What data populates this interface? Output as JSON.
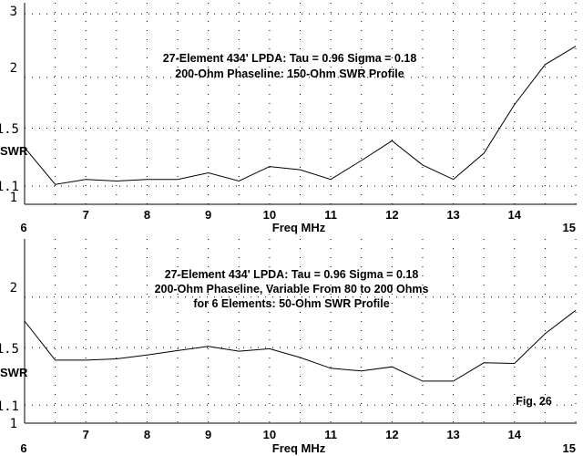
{
  "chart_data": [
    {
      "type": "line",
      "title": [
        "27-Element 434' LPDA:  Tau = 0.96 Sigma = 0.18",
        "200-Ohm Phaseline:  150-Ohm SWR Profile"
      ],
      "xlabel": "Freq MHz",
      "ylabel": "SWR",
      "xlim": [
        6,
        15
      ],
      "ylim": [
        1,
        3.25
      ],
      "yscale": "reflection-coefficient",
      "x_ticks": [
        "6",
        "7",
        "8",
        "9",
        "10",
        "11",
        "12",
        "13",
        "14",
        "15"
      ],
      "y_ticks": [
        "1",
        "1.1",
        "1.5",
        "2",
        "3"
      ],
      "grid": true,
      "annotation": "",
      "x": [
        6,
        6.5,
        7,
        7.5,
        8,
        8.5,
        9,
        9.5,
        10,
        10.5,
        11,
        11.5,
        12,
        12.5,
        13,
        13.5,
        14,
        14.5,
        15
      ],
      "series": [
        {
          "name": "SWR",
          "values": [
            1.35,
            1.11,
            1.14,
            1.13,
            1.14,
            1.14,
            1.18,
            1.13,
            1.22,
            1.2,
            1.14,
            1.26,
            1.4,
            1.23,
            1.14,
            1.31,
            1.71,
            2.16,
            2.42
          ]
        }
      ]
    },
    {
      "type": "line",
      "title": [
        "27-Element 434' LPDA:  Tau = 0.96 Sigma = 0.18",
        "200-Ohm Phaseline, Variable From 80 to 200 Ohms",
        "for 6 Elements:  50-Ohm SWR Profile"
      ],
      "xlabel": "Freq MHz",
      "ylabel": "SWR",
      "xlim": [
        6,
        15
      ],
      "ylim": [
        1,
        2.9
      ],
      "yscale": "reflection-coefficient",
      "x_ticks": [
        "6",
        "7",
        "8",
        "9",
        "10",
        "11",
        "12",
        "13",
        "14",
        "15"
      ],
      "y_ticks": [
        "1",
        "1.1",
        "1.5",
        "2"
      ],
      "grid": true,
      "annotation": "Fig. 26",
      "x": [
        6,
        6.5,
        7,
        7.5,
        8,
        8.5,
        9,
        9.5,
        10,
        10.5,
        11,
        11.5,
        12,
        12.5,
        13,
        13.5,
        14,
        14.5,
        15
      ],
      "series": [
        {
          "name": "SWR",
          "values": [
            1.74,
            1.4,
            1.4,
            1.41,
            1.44,
            1.475,
            1.51,
            1.47,
            1.49,
            1.42,
            1.34,
            1.32,
            1.35,
            1.25,
            1.25,
            1.38,
            1.375,
            1.62,
            1.85
          ]
        }
      ]
    }
  ]
}
